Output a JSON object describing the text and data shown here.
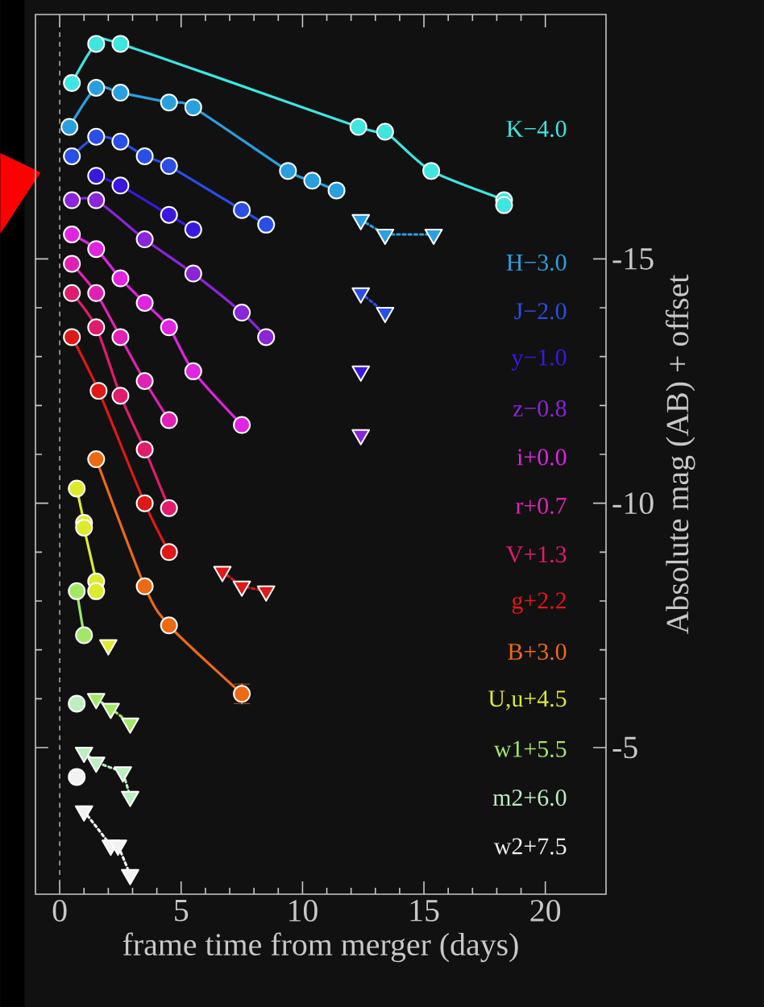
{
  "chart_data": {
    "type": "line",
    "xlabel": "frame time from merger (days)",
    "ylabel": "Absolute mag (AB) + offset",
    "xlim": [
      -1,
      22.5
    ],
    "ylim": [
      -2,
      -20
    ],
    "xticks": [
      0,
      5,
      10,
      15,
      20
    ],
    "yticks": [
      -15,
      -10,
      -5
    ],
    "marker": "circle",
    "line_style": "solid",
    "ref_lines": [
      {
        "axis": "x",
        "value": 0,
        "color": "#aaaaaa",
        "line_style": "dashed"
      }
    ],
    "series": [
      {
        "name": "K−4.0",
        "color": "#3ee6e0",
        "x": [
          0.5,
          1.5,
          2.5,
          12.3,
          13.4,
          15.3,
          18.3,
          18.3
        ],
        "values": [
          -18.6,
          -19.4,
          -19.4,
          -17.7,
          -17.6,
          -16.8,
          -16.2,
          -16.1
        ]
      },
      {
        "name": "H−3.0",
        "color": "#2a9fe0",
        "x": [
          0.4,
          1.5,
          2.5,
          4.5,
          5.5,
          9.4,
          10.4,
          11.4
        ],
        "values": [
          -17.7,
          -18.5,
          -18.4,
          -18.2,
          -18.1,
          -16.8,
          -16.6,
          -16.4
        ]
      },
      {
        "color": "#2a9fe0",
        "marker": "triangle",
        "line_style": "dotted",
        "x": [
          12.4,
          13.4,
          15.4
        ],
        "values": [
          -15.8,
          -15.5,
          -15.5
        ]
      },
      {
        "name": "J−2.0",
        "color": "#2a4ee6",
        "x": [
          0.5,
          1.5,
          2.5,
          3.5,
          4.5,
          7.5,
          8.5
        ],
        "values": [
          -17.1,
          -17.5,
          -17.4,
          -17.1,
          -16.9,
          -16.0,
          -15.7
        ]
      },
      {
        "color": "#2a4ee6",
        "marker": "triangle",
        "line_style": "dotted",
        "x": [
          12.4,
          13.4
        ],
        "values": [
          -14.3,
          -13.9
        ]
      },
      {
        "name": "y−1.0",
        "color": "#3a18e0",
        "x": [
          1.5,
          2.5,
          4.5,
          5.5
        ],
        "values": [
          -16.7,
          -16.5,
          -15.9,
          -15.6
        ]
      },
      {
        "color": "#3a18e0",
        "marker": "triangle",
        "line_style": "dotted",
        "x": [
          12.4
        ],
        "values": [
          -12.7
        ]
      },
      {
        "name": "z−0.8",
        "color": "#8a26d8",
        "x": [
          0.5,
          1.5,
          3.5,
          5.5,
          7.5,
          8.5
        ],
        "values": [
          -16.2,
          -16.2,
          -15.4,
          -14.7,
          -13.9,
          -13.4
        ]
      },
      {
        "color": "#8a26d8",
        "marker": "triangle",
        "line_style": "dotted",
        "x": [
          12.4
        ],
        "values": [
          -11.4
        ]
      },
      {
        "name": "i+0.0",
        "color": "#e024e0",
        "x": [
          0.5,
          1.5,
          2.5,
          3.5,
          4.5,
          5.5,
          7.5
        ],
        "values": [
          -15.5,
          -15.2,
          -14.6,
          -14.1,
          -13.6,
          -12.7,
          -11.6
        ]
      },
      {
        "name": "r+0.7",
        "color": "#e022b4",
        "x": [
          0.5,
          1.5,
          2.5,
          3.5,
          4.5
        ],
        "values": [
          -14.9,
          -14.3,
          -13.4,
          -12.5,
          -11.7
        ]
      },
      {
        "name": "V+1.3",
        "color": "#e01c6c",
        "x": [
          0.5,
          1.5,
          2.5,
          3.5,
          4.5
        ],
        "values": [
          -14.3,
          -13.6,
          -12.2,
          -11.1,
          -9.9
        ]
      },
      {
        "name": "g+2.2",
        "color": "#e01818",
        "x": [
          0.5,
          1.6,
          3.5,
          4.5
        ],
        "values": [
          -13.4,
          -12.3,
          -10.0,
          -9.0
        ]
      },
      {
        "color": "#e01818",
        "marker": "triangle",
        "line_style": "dotted",
        "x": [
          6.7,
          7.5,
          8.5
        ],
        "values": [
          -8.6,
          -8.3,
          -8.2
        ]
      },
      {
        "name": "B+3.0",
        "color": "#ee6a12",
        "x": [
          1.5,
          3.5,
          4.5,
          7.5
        ],
        "values": [
          -10.9,
          -8.3,
          -7.5,
          -6.1
        ],
        "errors": [
          null,
          null,
          null,
          0.2
        ]
      },
      {
        "name": "U,u+4.5",
        "color": "#dcec2c",
        "x": [
          0.7,
          1.0,
          1.0,
          1.5,
          1.5
        ],
        "values": [
          -10.3,
          -9.6,
          -9.5,
          -8.4,
          -8.2
        ]
      },
      {
        "color": "#dcec2c",
        "marker": "triangle",
        "line_style": "dotted",
        "x": [
          2.0
        ],
        "values": [
          -7.1
        ]
      },
      {
        "name": "w1+5.5",
        "color": "#a2e866",
        "x": [
          0.7,
          1.0
        ],
        "values": [
          -8.2,
          -7.3
        ]
      },
      {
        "color": "#a2e866",
        "marker": "triangle",
        "line_style": "dotted",
        "x": [
          1.5,
          2.1,
          2.9
        ],
        "values": [
          -6.0,
          -5.8,
          -5.5
        ]
      },
      {
        "name": "m2+6.0",
        "color": "#bdeec0",
        "x": [
          0.7
        ],
        "values": [
          -5.9
        ]
      },
      {
        "color": "#bdeec0",
        "marker": "triangle",
        "line_style": "dotted",
        "x": [
          1.0,
          1.5,
          2.6,
          2.9
        ],
        "values": [
          -4.9,
          -4.7,
          -4.5,
          -4.0
        ]
      },
      {
        "name": "w2+7.5",
        "color": "#f2f2f2",
        "x": [
          0.7
        ],
        "values": [
          -4.4
        ]
      },
      {
        "color": "#f2f2f2",
        "marker": "triangle",
        "line_style": "dotted",
        "x": [
          1.0,
          2.1,
          2.4,
          2.9
        ],
        "values": [
          -3.7,
          -3.0,
          -3.0,
          -2.4
        ]
      }
    ]
  }
}
